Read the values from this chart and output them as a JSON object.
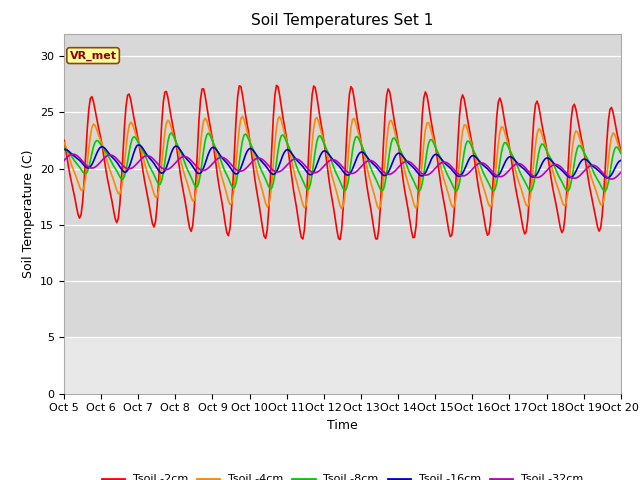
{
  "title": "Soil Temperatures Set 1",
  "xlabel": "Time",
  "ylabel": "Soil Temperature (C)",
  "ylim": [
    0,
    32
  ],
  "yticks": [
    0,
    5,
    10,
    15,
    20,
    25,
    30
  ],
  "x_tick_labels": [
    "Oct 5",
    "Oct 6",
    "Oct 7",
    "Oct 8",
    "Oct 9",
    "Oct 10",
    "Oct 11",
    "Oct 12",
    "Oct 13",
    "Oct 14",
    "Oct 15",
    "Oct 16",
    "Oct 17",
    "Oct 18",
    "Oct 19",
    "Oct 20"
  ],
  "annotation_text": "VR_met",
  "lines": {
    "Tsoil -2cm": {
      "color": "#ff0000",
      "linewidth": 1.2
    },
    "Tsoil -4cm": {
      "color": "#ff8800",
      "linewidth": 1.2
    },
    "Tsoil -8cm": {
      "color": "#00cc00",
      "linewidth": 1.2
    },
    "Tsoil -16cm": {
      "color": "#0000cc",
      "linewidth": 1.2
    },
    "Tsoil -32cm": {
      "color": "#bb00bb",
      "linewidth": 1.2
    }
  },
  "plot_bg_color": "#d8d8d8",
  "lower_bg_color": "#e8e8e8",
  "fig_bg_color": "#ffffff",
  "title_fontsize": 11,
  "axis_label_fontsize": 9,
  "tick_fontsize": 8
}
